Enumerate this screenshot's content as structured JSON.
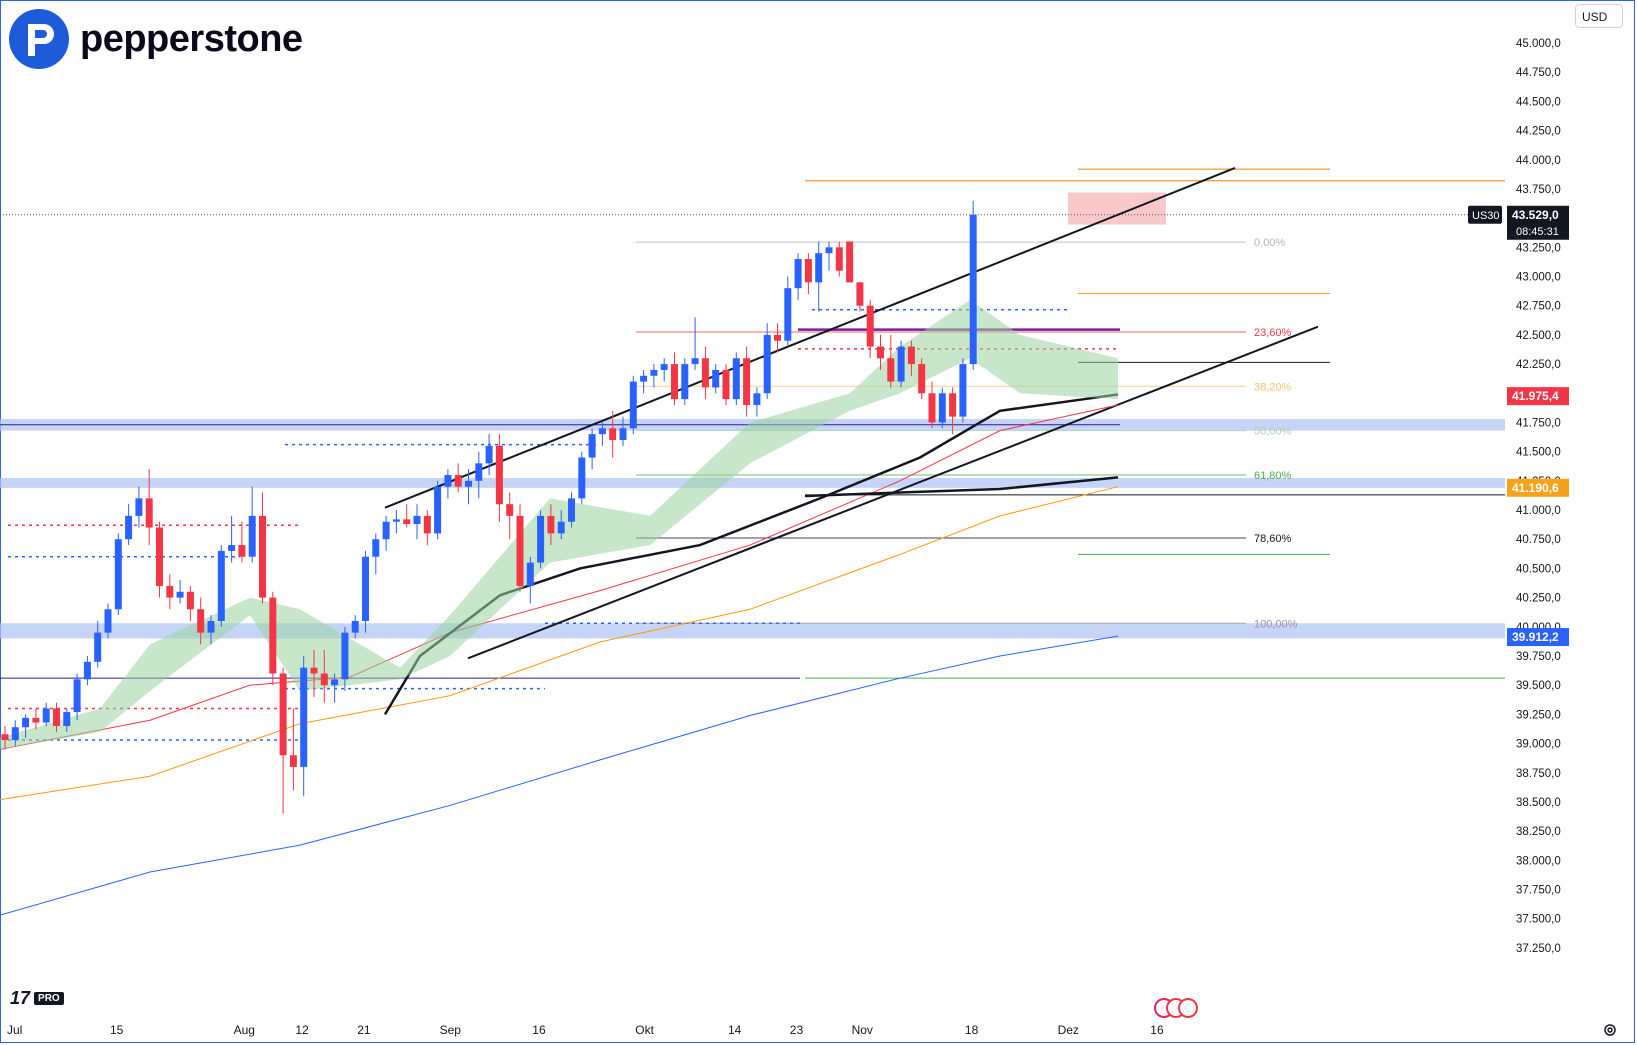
{
  "brand": {
    "name": "pepperstone",
    "color": "#1e5bd8"
  },
  "toolbar": {
    "currency": "USD"
  },
  "footer": {
    "tv_badge": "PRO"
  },
  "chart_data": {
    "type": "candlestick",
    "symbol": "US30",
    "last_price": "43.529,0",
    "countdown": "08:45:31",
    "y_range": [
      37100,
      45200
    ],
    "y_ticks": [
      {
        "v": 45000,
        "label": "45.000,0"
      },
      {
        "v": 44750,
        "label": "44.750,0"
      },
      {
        "v": 44500,
        "label": "44.500,0"
      },
      {
        "v": 44250,
        "label": "44.250,0"
      },
      {
        "v": 44000,
        "label": "44.000,0"
      },
      {
        "v": 43750,
        "label": "43.750,0"
      },
      {
        "v": 43250,
        "label": "43.250,0"
      },
      {
        "v": 43000,
        "label": "43.000,0"
      },
      {
        "v": 42750,
        "label": "42.750,0"
      },
      {
        "v": 42500,
        "label": "42.500,0"
      },
      {
        "v": 42250,
        "label": "42.250,0"
      },
      {
        "v": 41750,
        "label": "41.750,0"
      },
      {
        "v": 41500,
        "label": "41.500,0"
      },
      {
        "v": 41250,
        "label": "41.250,0"
      },
      {
        "v": 41000,
        "label": "41.000,0"
      },
      {
        "v": 40750,
        "label": "40.750,0"
      },
      {
        "v": 40500,
        "label": "40.500,0"
      },
      {
        "v": 40250,
        "label": "40.250,0"
      },
      {
        "v": 40000,
        "label": "40.000,0"
      },
      {
        "v": 39750,
        "label": "39.750,0"
      },
      {
        "v": 39500,
        "label": "39.500,0"
      },
      {
        "v": 39250,
        "label": "39.250,0"
      },
      {
        "v": 39000,
        "label": "39.000,0"
      },
      {
        "v": 38750,
        "label": "38.750,0"
      },
      {
        "v": 38500,
        "label": "38.500,0"
      },
      {
        "v": 38250,
        "label": "38.250,0"
      },
      {
        "v": 38000,
        "label": "38.000,0"
      },
      {
        "v": 37750,
        "label": "37.750,0"
      },
      {
        "v": 37500,
        "label": "37.500,0"
      },
      {
        "v": 37250,
        "label": "37.250,0"
      }
    ],
    "x_ticks": [
      {
        "i": 0,
        "label": "Jul"
      },
      {
        "i": 10,
        "label": "15"
      },
      {
        "i": 22,
        "label": "Aug"
      },
      {
        "i": 28,
        "label": "12"
      },
      {
        "i": 34,
        "label": "21"
      },
      {
        "i": 42,
        "label": "Sep"
      },
      {
        "i": 51,
        "label": "16"
      },
      {
        "i": 61,
        "label": "Okt"
      },
      {
        "i": 70,
        "label": "14"
      },
      {
        "i": 76,
        "label": "23"
      },
      {
        "i": 82,
        "label": "Nov"
      },
      {
        "i": 93,
        "label": "18"
      },
      {
        "i": 102,
        "label": "Dez"
      },
      {
        "i": 111,
        "label": "16"
      }
    ],
    "price_labels": [
      {
        "v": 41975.4,
        "label": "41.975,4",
        "color": "#f23645"
      },
      {
        "v": 41190.6,
        "label": "41.190,6",
        "color": "#f7a21b"
      },
      {
        "v": 39912.2,
        "label": "39.912,2",
        "color": "#2962ff"
      }
    ],
    "fib_levels": [
      {
        "label": "0,00%",
        "v": 43295,
        "color": "#b0b3bc"
      },
      {
        "label": "23,60%",
        "v": 42525,
        "color": "#f23645"
      },
      {
        "label": "38,20%",
        "v": 42060,
        "color": "#f7c56b"
      },
      {
        "label": "50,00%",
        "v": 41680,
        "color": "#a5d6a7"
      },
      {
        "label": "61,80%",
        "v": 41300,
        "color": "#4caf50"
      },
      {
        "label": "78,60%",
        "v": 40760,
        "color": "#131722"
      },
      {
        "label": "100,00%",
        "v": 40030,
        "color": "#9598a1"
      }
    ],
    "candles": [
      [
        39080,
        39150,
        38950,
        39030
      ],
      [
        39030,
        39200,
        38980,
        39140
      ],
      [
        39140,
        39250,
        39050,
        39220
      ],
      [
        39220,
        39300,
        39120,
        39180
      ],
      [
        39180,
        39350,
        39150,
        39300
      ],
      [
        39300,
        39350,
        39100,
        39150
      ],
      [
        39150,
        39300,
        39100,
        39270
      ],
      [
        39270,
        39600,
        39200,
        39550
      ],
      [
        39550,
        39750,
        39500,
        39700
      ],
      [
        39700,
        40050,
        39650,
        39950
      ],
      [
        39950,
        40200,
        39900,
        40150
      ],
      [
        40150,
        40800,
        40100,
        40750
      ],
      [
        40750,
        41050,
        40700,
        40950
      ],
      [
        40950,
        41200,
        40850,
        41100
      ],
      [
        41100,
        41350,
        40700,
        40850
      ],
      [
        40850,
        40900,
        40250,
        40350
      ],
      [
        40350,
        40450,
        40150,
        40250
      ],
      [
        40250,
        40400,
        40200,
        40300
      ],
      [
        40300,
        40350,
        40050,
        40150
      ],
      [
        40150,
        40250,
        39850,
        39950
      ],
      [
        39950,
        40100,
        39850,
        40050
      ],
      [
        40050,
        40700,
        40000,
        40650
      ],
      [
        40650,
        40950,
        40550,
        40700
      ],
      [
        40700,
        40900,
        40550,
        40600
      ],
      [
        40600,
        41200,
        40550,
        40950
      ],
      [
        40950,
        41150,
        40200,
        40250
      ],
      [
        40250,
        40300,
        39500,
        39600
      ],
      [
        39600,
        39650,
        38400,
        38900
      ],
      [
        38900,
        39300,
        38600,
        38800
      ],
      [
        38800,
        39750,
        38550,
        39650
      ],
      [
        39650,
        39800,
        39400,
        39600
      ],
      [
        39600,
        39800,
        39350,
        39500
      ],
      [
        39500,
        39600,
        39350,
        39550
      ],
      [
        39550,
        40000,
        39450,
        39950
      ],
      [
        39950,
        40100,
        39900,
        40050
      ],
      [
        40050,
        40650,
        39950,
        40600
      ],
      [
        40600,
        40800,
        40450,
        40750
      ],
      [
        40750,
        40950,
        40650,
        40900
      ],
      [
        40900,
        41000,
        40800,
        40920
      ],
      [
        40920,
        41050,
        40850,
        40880
      ],
      [
        40880,
        41050,
        40750,
        40950
      ],
      [
        40950,
        41000,
        40700,
        40800
      ],
      [
        40800,
        41250,
        40750,
        41200
      ],
      [
        41200,
        41350,
        41100,
        41300
      ],
      [
        41300,
        41400,
        41150,
        41200
      ],
      [
        41200,
        41350,
        41050,
        41250
      ],
      [
        41250,
        41500,
        41100,
        41400
      ],
      [
        41400,
        41650,
        41300,
        41550
      ],
      [
        41550,
        41650,
        40900,
        41050
      ],
      [
        41050,
        41150,
        40750,
        40950
      ],
      [
        40950,
        41050,
        40300,
        40350
      ],
      [
        40350,
        40600,
        40200,
        40550
      ],
      [
        40550,
        41000,
        40500,
        40950
      ],
      [
        40950,
        41050,
        40700,
        40800
      ],
      [
        40800,
        41000,
        40750,
        40900
      ],
      [
        40900,
        41150,
        40850,
        41100
      ],
      [
        41100,
        41500,
        41050,
        41450
      ],
      [
        41450,
        41700,
        41350,
        41650
      ],
      [
        41650,
        41750,
        41550,
        41700
      ],
      [
        41700,
        41850,
        41450,
        41600
      ],
      [
        41600,
        41800,
        41550,
        41700
      ],
      [
        41700,
        42150,
        41650,
        42100
      ],
      [
        42100,
        42200,
        42000,
        42150
      ],
      [
        42150,
        42250,
        42050,
        42200
      ],
      [
        42200,
        42300,
        42100,
        42250
      ],
      [
        42250,
        42350,
        41900,
        41950
      ],
      [
        41950,
        42300,
        41900,
        42250
      ],
      [
        42250,
        42650,
        42200,
        42300
      ],
      [
        42300,
        42400,
        41950,
        42050
      ],
      [
        42050,
        42250,
        42000,
        42200
      ],
      [
        42200,
        42250,
        41900,
        41950
      ],
      [
        41950,
        42350,
        41900,
        42300
      ],
      [
        42300,
        42400,
        41800,
        41900
      ],
      [
        41900,
        42050,
        41800,
        42000
      ],
      [
        42000,
        42600,
        41950,
        42500
      ],
      [
        42500,
        42600,
        42350,
        42450
      ],
      [
        42450,
        43000,
        42400,
        42900
      ],
      [
        42900,
        43200,
        42800,
        43150
      ],
      [
        43150,
        43200,
        42850,
        42950
      ],
      [
        42950,
        43300,
        42700,
        43200
      ],
      [
        43200,
        43300,
        43050,
        43250
      ],
      [
        43250,
        43300,
        43000,
        43050
      ],
      [
        43300,
        43300,
        43000,
        42950
      ],
      [
        42950,
        42950,
        42700,
        42750
      ],
      [
        42750,
        42800,
        42300,
        42400
      ],
      [
        42400,
        42500,
        42200,
        42300
      ],
      [
        42300,
        42500,
        42050,
        42100
      ],
      [
        42100,
        42450,
        42050,
        42400
      ],
      [
        42400,
        42450,
        42150,
        42250
      ],
      [
        42250,
        42300,
        41950,
        42000
      ],
      [
        42000,
        42100,
        41700,
        41750
      ],
      [
        41750,
        42050,
        41700,
        42000
      ],
      [
        42000,
        42050,
        41650,
        41800
      ],
      [
        41800,
        42300,
        41750,
        42250
      ],
      [
        42250,
        43650,
        42200,
        43529
      ]
    ],
    "series_lines": [
      {
        "name": "",
        "color": "#f23645",
        "width": 1
      },
      {
        "name": "",
        "color": "#ff9800",
        "width": 1
      },
      {
        "name": "",
        "color": "#2962ff",
        "width": 1
      },
      {
        "name": "",
        "color": "#131722",
        "width": 2.5
      }
    ]
  }
}
